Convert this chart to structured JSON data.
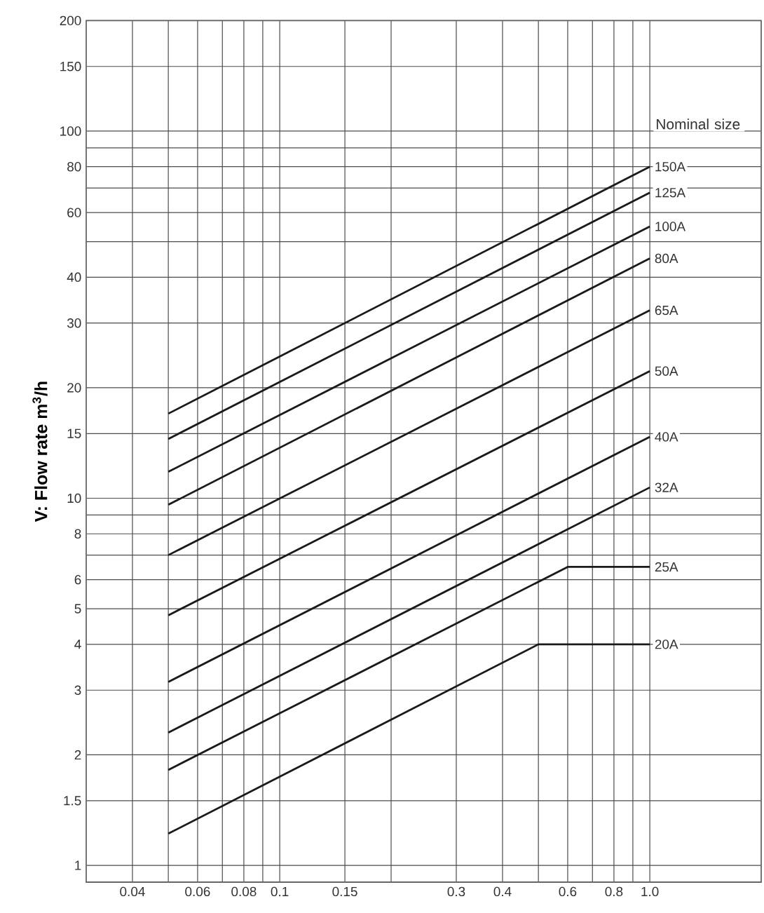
{
  "chart_data": {
    "type": "line",
    "ylabel": "V: Flow rate m$^{3}$/h",
    "legend_title": "Nominal size",
    "log": "xy",
    "grid": true,
    "line_style": "solid",
    "xlim": [
      0.03,
      2
    ],
    "ylim": [
      0.9,
      200
    ],
    "xticks": [
      0.04,
      {
        "value": 0.05,
        "label": null
      },
      0.06,
      {
        "value": 0.07,
        "label": null
      },
      0.08,
      {
        "value": 0.09,
        "label": null
      },
      0.1,
      0.15,
      {
        "value": 0.2,
        "label": null
      },
      0.3,
      0.4,
      {
        "value": 0.5,
        "label": null
      },
      0.6,
      {
        "value": 0.7,
        "label": null
      },
      0.8,
      {
        "value": 0.9,
        "label": null
      },
      {
        "value": 1,
        "label": "1.0"
      }
    ],
    "yticks": [
      1,
      1.5,
      2,
      3,
      4,
      5,
      6,
      {
        "value": 7,
        "label": null
      },
      8,
      {
        "value": 9,
        "label": null
      },
      10,
      15,
      20,
      30,
      40,
      {
        "value": 50,
        "label": null
      },
      60,
      {
        "value": 70,
        "label": null
      },
      80,
      {
        "value": 90,
        "label": null
      },
      100,
      150,
      200
    ],
    "series": [
      {
        "name": "150A",
        "color": "#1a1a1a",
        "x": [
          0.05,
          1
        ],
        "values": [
          17,
          80
        ]
      },
      {
        "name": "125A",
        "color": "#1a1a1a",
        "x": [
          0.05,
          1
        ],
        "values": [
          14.5,
          68
        ]
      },
      {
        "name": "100A",
        "color": "#1a1a1a",
        "x": [
          0.05,
          1
        ],
        "values": [
          11.8,
          55
        ]
      },
      {
        "name": "80A",
        "color": "#1a1a1a",
        "x": [
          0.05,
          1
        ],
        "values": [
          9.6,
          45
        ]
      },
      {
        "name": "65A",
        "color": "#1a1a1a",
        "x": [
          0.05,
          1
        ],
        "values": [
          7,
          32.5
        ]
      },
      {
        "name": "50A",
        "color": "#1a1a1a",
        "x": [
          0.05,
          1
        ],
        "values": [
          4.8,
          22.2
        ]
      },
      {
        "name": "40A",
        "color": "#1a1a1a",
        "x": [
          0.05,
          1
        ],
        "values": [
          3.16,
          14.7
        ]
      },
      {
        "name": "32A",
        "color": "#1a1a1a",
        "x": [
          0.05,
          1
        ],
        "values": [
          2.3,
          10.7
        ]
      },
      {
        "name": "25A",
        "color": "#1a1a1a",
        "x": [
          0.05,
          0.6,
          1
        ],
        "values": [
          1.82,
          6.5,
          6.5
        ]
      },
      {
        "name": "20A",
        "color": "#1a1a1a",
        "x": [
          0.05,
          0.5,
          1
        ],
        "values": [
          1.22,
          4,
          4
        ]
      }
    ]
  }
}
